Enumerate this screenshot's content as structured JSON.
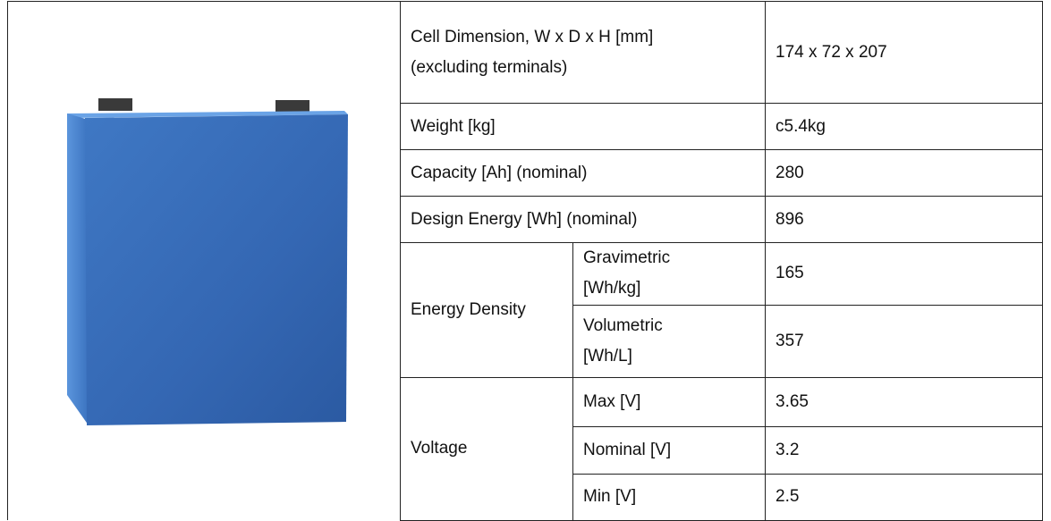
{
  "table": {
    "rows": [
      {
        "label": "Cell Dimension, W x D x H [mm] (excluding terminals)",
        "value": "174 x 72 x 207"
      },
      {
        "label": "Weight [kg]",
        "value": "c5.4kg"
      },
      {
        "label": "Capacity [Ah] (nominal)",
        "value": "280"
      },
      {
        "label": "Design Energy [Wh] (nominal)",
        "value": "896"
      }
    ],
    "groups": [
      {
        "label": "Energy Density",
        "items": [
          {
            "label": "Gravimetric [Wh/kg]",
            "value": "165"
          },
          {
            "label": "Volumetric [Wh/L]",
            "value": "357"
          }
        ]
      },
      {
        "label": "Voltage",
        "items": [
          {
            "label": "Max [V]",
            "value": "3.65"
          },
          {
            "label": "Nominal [V]",
            "value": "3.2"
          },
          {
            "label": "Min [V]",
            "value": "2.5"
          }
        ]
      }
    ]
  }
}
